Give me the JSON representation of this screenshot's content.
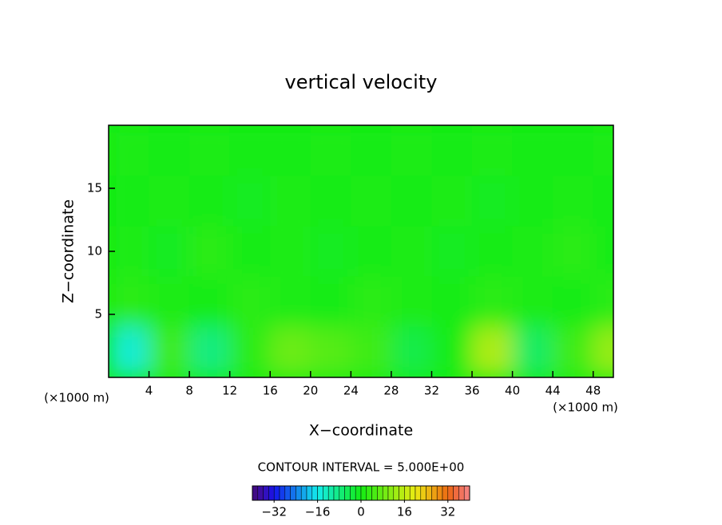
{
  "chart_data": {
    "type": "contour",
    "title": "vertical velocity",
    "x_label": "X−coordinate",
    "y_label": "Z−coordinate",
    "x_unit": "(×1000 m)",
    "y_unit": "(×1000 m)",
    "xlim": [
      0,
      50
    ],
    "ylim": [
      0,
      20
    ],
    "xticks": [
      4,
      8,
      12,
      16,
      20,
      24,
      28,
      32,
      36,
      40,
      44,
      48
    ],
    "yticks": [
      5,
      10,
      15
    ],
    "x": [
      2,
      6,
      10,
      14,
      18,
      22,
      26,
      30,
      34,
      38,
      42,
      46,
      50
    ],
    "y": [
      2,
      6,
      10,
      14,
      18
    ],
    "z": [
      [
        -14,
        4,
        -8,
        2,
        8,
        6,
        4,
        -4,
        0,
        14,
        -6,
        4,
        12
      ],
      [
        2,
        1,
        0,
        2,
        1,
        0,
        2,
        1,
        0,
        2,
        1,
        0,
        2
      ],
      [
        1,
        -1,
        2,
        0,
        1,
        -1,
        0,
        1,
        -1,
        0,
        1,
        2,
        0
      ],
      [
        0,
        1,
        0,
        -1,
        1,
        0,
        1,
        0,
        1,
        -1,
        0,
        1,
        0
      ],
      [
        1,
        0,
        1,
        0,
        0,
        1,
        0,
        1,
        0,
        1,
        0,
        0,
        1
      ]
    ],
    "contour_label": "CONTOUR INTERVAL = 5.000E+00",
    "clim": [
      -40,
      40
    ],
    "cticks": [
      {
        "value": -32,
        "label": "−32"
      },
      {
        "value": -16,
        "label": "−16"
      },
      0,
      16,
      32
    ]
  }
}
